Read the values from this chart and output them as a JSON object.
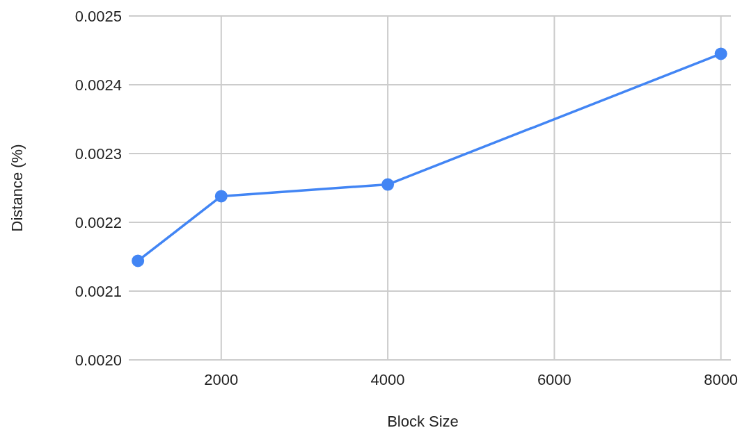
{
  "chart_data": {
    "type": "line",
    "xlabel": "Block Size",
    "ylabel": "Distance (%)",
    "x": [
      1000,
      2000,
      4000,
      8000
    ],
    "series": [
      {
        "color": "#4285f4",
        "values": [
          0.002144,
          0.002238,
          0.002255,
          0.002445
        ]
      }
    ],
    "xlim": [
      890,
      8120
    ],
    "xticks": [
      2000,
      4000,
      6000,
      8000
    ],
    "ylim": [
      0.002,
      0.0025
    ],
    "yticks": [
      {
        "value": 0.002,
        "label": "0.0020"
      },
      {
        "value": 0.0021,
        "label": "0.0021"
      },
      {
        "value": 0.0022,
        "label": "0.0022"
      },
      {
        "value": 0.0023,
        "label": "0.0023"
      },
      {
        "value": 0.0024,
        "label": "0.0024"
      },
      {
        "value": 0.0025,
        "label": "0.0025"
      }
    ],
    "grid": true,
    "marker": "circle",
    "line_style": "solid"
  }
}
